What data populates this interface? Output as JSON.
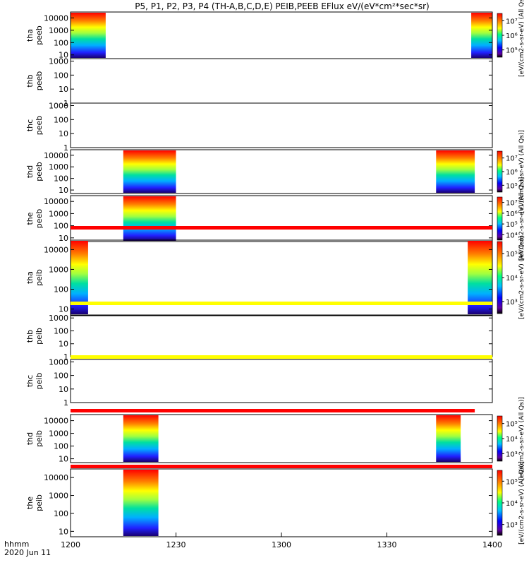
{
  "chart_data": {
    "type": "heatmap",
    "title": "P5, P1, P2, P3, P4 (TH-A,B,C,D,E) PEIB,PEEB EFlux eV/(eV*cm²*sec*sr)",
    "x_ticks": [
      "1200",
      "1230",
      "1300",
      "1330",
      "1400"
    ],
    "x_range": [
      "12:00",
      "14:00"
    ],
    "x_label_time": "hhmm",
    "x_label_date": "2020 Jun 11",
    "panels": [
      {
        "probe": "tha",
        "product": "peeb",
        "y_ticks": [
          "10",
          "100",
          "1000",
          "10000"
        ],
        "y_range": [
          5,
          30000
        ],
        "y_scale": "log",
        "data_blocks": [
          {
            "start": "12:00",
            "end": "12:10"
          },
          {
            "start": "13:54",
            "end": "14:00"
          }
        ],
        "colorbar": {
          "ticks": [
            "10⁵",
            "10⁶",
            "10⁷"
          ],
          "label": "[eV/(cm2-s-sr-eV) (All Qs)]"
        }
      },
      {
        "probe": "thb",
        "product": "peeb",
        "y_ticks": [
          "1",
          "10",
          "100",
          "1000"
        ],
        "y_range": [
          1,
          1500
        ],
        "y_scale": "log",
        "data_blocks": []
      },
      {
        "probe": "thc",
        "product": "peeb",
        "y_ticks": [
          "1",
          "10",
          "100",
          "1000"
        ],
        "y_range": [
          1,
          1500
        ],
        "y_scale": "log",
        "data_blocks": []
      },
      {
        "probe": "thd",
        "product": "peeb",
        "y_ticks": [
          "10",
          "100",
          "1000",
          "10000"
        ],
        "y_range": [
          5,
          30000
        ],
        "y_scale": "log",
        "data_blocks": [
          {
            "start": "12:15",
            "end": "12:30"
          },
          {
            "start": "13:44",
            "end": "13:55"
          }
        ],
        "colorbar": {
          "ticks": [
            "10⁵",
            "10⁶",
            "10⁷"
          ],
          "label": "[eV/(cm2-s-sr-eV) (All Qs)]"
        }
      },
      {
        "probe": "the",
        "product": "peeb",
        "y_ticks": [
          "10",
          "100",
          "1000",
          "10000"
        ],
        "y_range": [
          5,
          30000
        ],
        "y_scale": "log",
        "data_blocks": [
          {
            "start": "12:15",
            "end": "12:30"
          }
        ],
        "colorbar": {
          "ticks": [
            "10⁴",
            "10⁵",
            "10⁶",
            "10⁷"
          ],
          "label": "[eV/(cm2-s-sr-eV) (All Qs)]"
        }
      },
      {
        "probe": "tha",
        "product": "peib",
        "y_ticks": [
          "10",
          "100",
          "1000",
          "10000"
        ],
        "y_range": [
          5,
          30000
        ],
        "y_scale": "log",
        "data_blocks": [
          {
            "start": "12:00",
            "end": "12:05"
          },
          {
            "start": "13:53",
            "end": "14:00"
          }
        ],
        "colorbar": {
          "ticks": [
            "10³",
            "10⁴",
            "10⁵"
          ],
          "label": "[eV/(cm2-s-sr-eV) (All Qs)]"
        }
      },
      {
        "probe": "thb",
        "product": "peib",
        "y_ticks": [
          "1",
          "10",
          "100",
          "1000"
        ],
        "y_range": [
          1,
          1500
        ],
        "y_scale": "log",
        "data_blocks": []
      },
      {
        "probe": "thc",
        "product": "peib",
        "y_ticks": [
          "1",
          "10",
          "100",
          "1000"
        ],
        "y_range": [
          1,
          1500
        ],
        "y_scale": "log",
        "data_blocks": []
      },
      {
        "probe": "thd",
        "product": "peib",
        "y_ticks": [
          "10",
          "100",
          "1000",
          "10000"
        ],
        "y_range": [
          5,
          30000
        ],
        "y_scale": "log",
        "data_blocks": [
          {
            "start": "12:15",
            "end": "12:25"
          },
          {
            "start": "13:44",
            "end": "13:51"
          }
        ],
        "colorbar": {
          "ticks": [
            "10³",
            "10⁴",
            "10⁵"
          ],
          "label": "[eV/(cm2-s-sr-eV) (All Qs)]"
        }
      },
      {
        "probe": "the",
        "product": "peib",
        "y_ticks": [
          "10",
          "100",
          "1000",
          "10000"
        ],
        "y_range": [
          5,
          30000
        ],
        "y_scale": "log",
        "data_blocks": [
          {
            "start": "12:15",
            "end": "12:25"
          }
        ],
        "colorbar": {
          "ticks": [
            "10³",
            "10⁴",
            "10⁵"
          ],
          "label": "[eV/(cm2-s-sr-eV) (All Qs)]"
        }
      }
    ],
    "status_bars": [
      {
        "after_panel": 4,
        "color": "#ff0000",
        "start": "12:00",
        "end": "14:00"
      },
      {
        "after_panel": 5,
        "color": "#ffff00",
        "start": "12:00",
        "end": "14:00"
      },
      {
        "after_panel": 6,
        "color": "#ffff00",
        "start": "12:00",
        "end": "14:00"
      },
      {
        "after_panel": 7,
        "color": "#ff0000",
        "start": "12:00",
        "end": "13:55"
      },
      {
        "after_panel": 8,
        "color": "#ff0000",
        "start": "12:00",
        "end": "14:00"
      }
    ]
  }
}
